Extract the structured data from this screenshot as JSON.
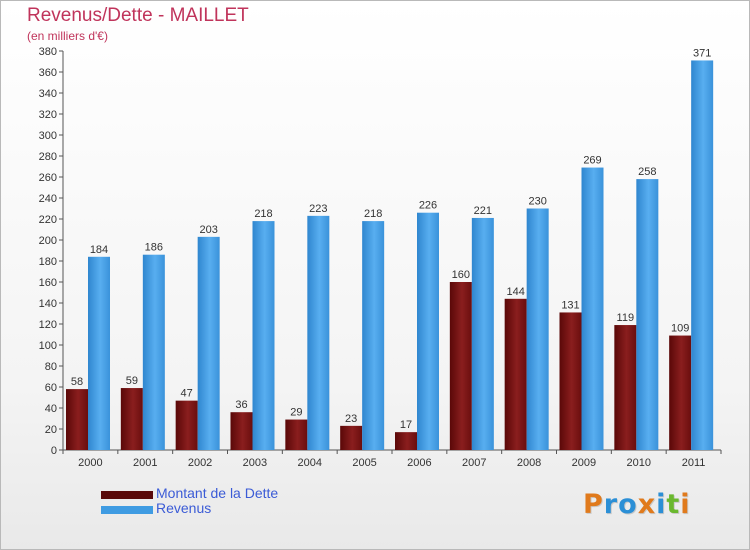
{
  "header": {
    "title": "Revenus/Dette - MAILLET",
    "subtitle": "(en milliers d'€)"
  },
  "colors": {
    "title": "#c0345b",
    "dette": "#7a1010",
    "revenus": "#3f9be2",
    "legend_text": "#3b5bd6"
  },
  "legend": {
    "dette_label": "Montant de la Dette",
    "revenus_label": "Revenus"
  },
  "logo": {
    "letters": [
      {
        "ch": "P",
        "color": "#e07a1c"
      },
      {
        "ch": "r",
        "color": "#2b8fd6"
      },
      {
        "ch": "o",
        "color": "#2b8fd6"
      },
      {
        "ch": "x",
        "color": "#e07a1c"
      },
      {
        "ch": "i",
        "color": "#2b8fd6"
      },
      {
        "ch": "t",
        "color": "#6ab82e"
      },
      {
        "ch": "i",
        "color": "#e07a1c"
      }
    ]
  },
  "chart_data": {
    "type": "bar",
    "title": "Revenus/Dette - MAILLET",
    "subtitle": "(en milliers d'€)",
    "categories": [
      "2000",
      "2001",
      "2002",
      "2003",
      "2004",
      "2005",
      "2006",
      "2007",
      "2008",
      "2009",
      "2010",
      "2011"
    ],
    "series": [
      {
        "name": "Montant de la Dette",
        "color": "#7a1010",
        "values": [
          58,
          59,
          47,
          36,
          29,
          23,
          17,
          160,
          144,
          131,
          119,
          109
        ]
      },
      {
        "name": "Revenus",
        "color": "#3f9be2",
        "values": [
          184,
          186,
          203,
          218,
          223,
          218,
          226,
          221,
          230,
          269,
          258,
          371
        ]
      }
    ],
    "ylim": [
      0,
      380
    ],
    "ytick_step": 20,
    "grid": false,
    "legend_position": "bottom-left"
  }
}
